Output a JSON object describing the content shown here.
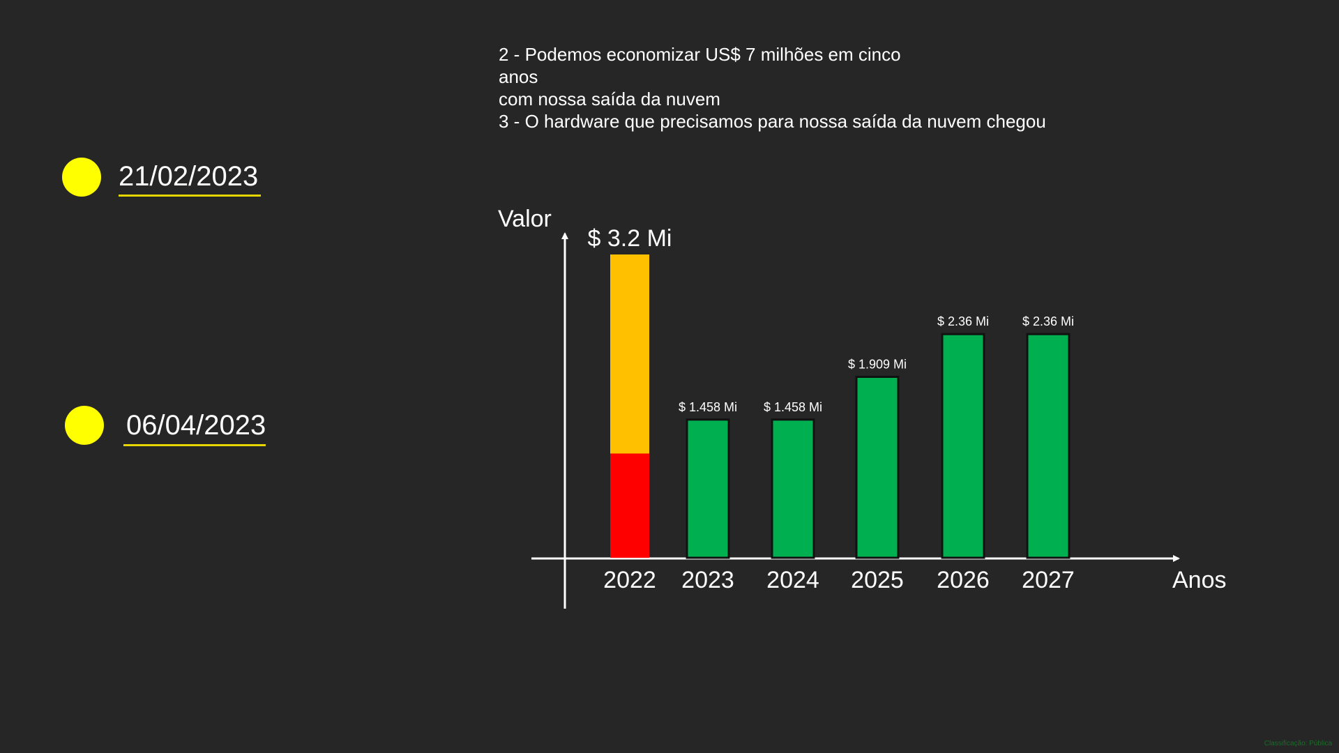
{
  "timeline": [
    {
      "date": "21/02/2023"
    },
    {
      "date": "06/04/2023"
    }
  ],
  "notes": [
    "2 - Podemos economizar US$ 7 milhões em cinco",
    "anos",
    "com nossa saída da nuvem",
    "3 - O hardware que precisamos para nossa saída da nuvem chegou"
  ],
  "colors": {
    "background": "#262626",
    "dot": "#ffff00",
    "underline": "#e6d600",
    "green": "#00b050",
    "orange": "#ffc000",
    "red": "#ff0000"
  },
  "chart_data": {
    "type": "bar",
    "xlabel": "Anos",
    "ylabel": "Valor",
    "categories": [
      "2022",
      "2023",
      "2024",
      "2025",
      "2026",
      "2027"
    ],
    "values": [
      3.2,
      1.458,
      1.458,
      1.909,
      2.36,
      2.36
    ],
    "data_labels": [
      "$ 3.2 Mi",
      "$ 1.458 Mi",
      "$ 1.458 Mi",
      "$ 1.909 Mi",
      "$ 2.36 Mi",
      "$ 2.36 Mi"
    ],
    "stack_2022": [
      {
        "color": "red",
        "value": 1.1
      },
      {
        "color": "orange",
        "value": 2.1
      }
    ],
    "ylim": [
      0,
      3.2
    ],
    "grid": false,
    "legend": "none"
  },
  "watermark": "Classificação: Pública"
}
